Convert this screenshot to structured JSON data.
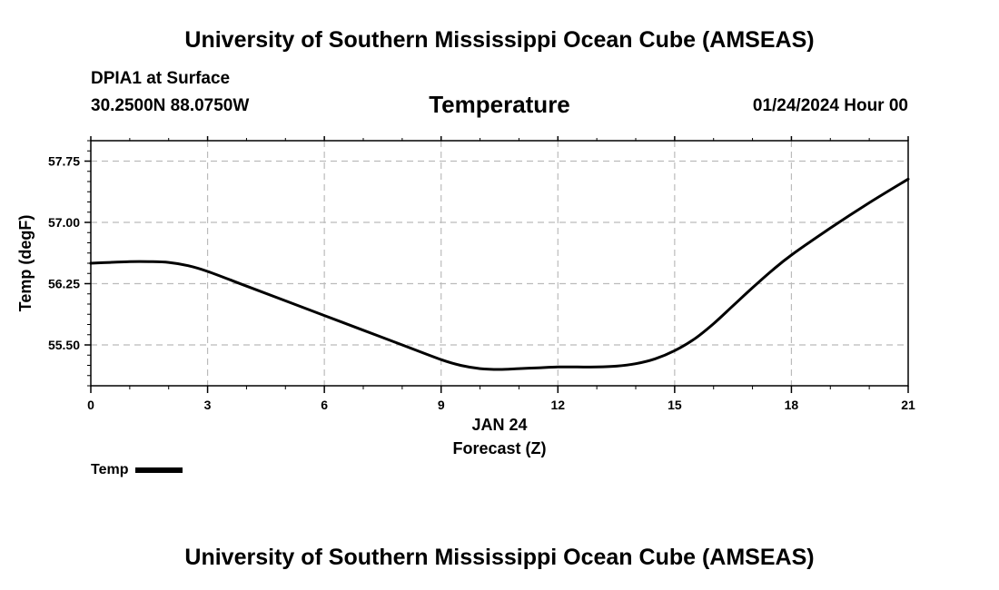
{
  "header": {
    "title": "University of Southern Mississippi Ocean Cube (AMSEAS)",
    "station": "DPIA1 at Surface",
    "coords": "30.2500N  88.0750W",
    "chart_title": "Temperature",
    "valid_time": "01/24/2024 Hour 00"
  },
  "footer": {
    "title": "University of Southern Mississippi Ocean Cube (AMSEAS)"
  },
  "legend": {
    "label": "Temp"
  },
  "chart_data": {
    "type": "line",
    "title": "Temperature",
    "xlabel": "Forecast (Z)",
    "xlabel_date": "JAN 24",
    "ylabel": "Temp (degF)",
    "xlim": [
      0,
      21
    ],
    "ylim": [
      55.0,
      58.0
    ],
    "xticks": [
      0,
      3,
      6,
      9,
      12,
      15,
      18,
      21
    ],
    "xtick_labels": [
      "0",
      "3",
      "6",
      "9",
      "12",
      "15",
      "18",
      "21"
    ],
    "yticks": [
      55.5,
      56.25,
      57.0,
      57.75
    ],
    "ytick_labels": [
      "55.50",
      "56.25",
      "57.00",
      "57.75"
    ],
    "grid": true,
    "legend_position": "bottom-left",
    "series": [
      {
        "name": "Temp",
        "color": "#000000",
        "x": [
          0,
          0.5,
          1,
          1.5,
          2,
          2.5,
          3,
          4,
          5,
          6,
          7,
          8,
          9,
          9.5,
          10,
          10.5,
          11,
          11.5,
          12,
          12.5,
          13,
          13.5,
          14,
          14.5,
          15,
          15.5,
          16,
          16.5,
          17,
          17.5,
          18,
          19,
          20,
          21
        ],
        "values": [
          56.5,
          56.51,
          56.52,
          56.52,
          56.51,
          56.47,
          56.4,
          56.22,
          56.04,
          55.86,
          55.68,
          55.5,
          55.32,
          55.25,
          55.21,
          55.2,
          55.21,
          55.22,
          55.23,
          55.23,
          55.23,
          55.24,
          55.27,
          55.33,
          55.43,
          55.57,
          55.76,
          55.98,
          56.2,
          56.41,
          56.6,
          56.93,
          57.24,
          57.53
        ]
      }
    ]
  }
}
